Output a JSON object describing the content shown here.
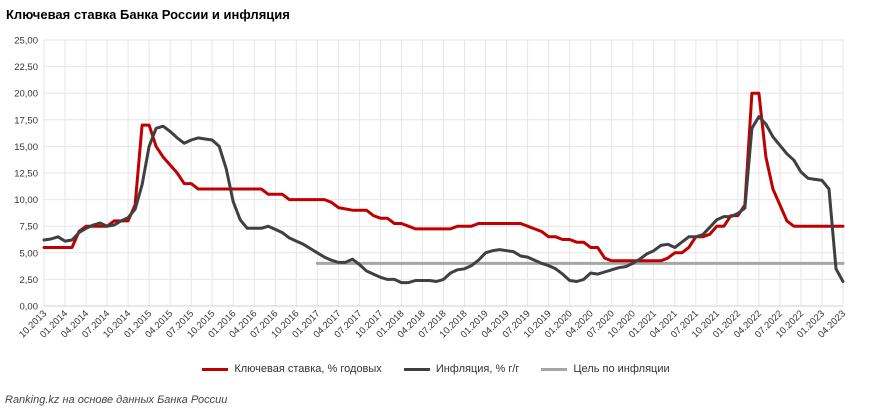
{
  "chart_data": {
    "type": "line",
    "title": "Ключевая ставка Банка России и инфляция",
    "source": "Ranking.kz на основе данных Банка России",
    "ylim": [
      0,
      25
    ],
    "yticks": [
      "0,00",
      "2,50",
      "5,00",
      "7,50",
      "10,00",
      "12,50",
      "15,00",
      "17,50",
      "20,00",
      "22,50",
      "25,00"
    ],
    "x_range": [
      "10.2013",
      "04.2023"
    ],
    "xticks": [
      "10.2013",
      "01.2014",
      "04.2014",
      "07.2014",
      "10.2014",
      "01.2015",
      "04.2015",
      "07.2015",
      "10.2015",
      "01.2016",
      "04.2016",
      "07.2016",
      "10.2016",
      "01.2017",
      "04.2017",
      "07.2017",
      "10.2017",
      "01.2018",
      "04.2018",
      "07.2018",
      "10.2018",
      "01.2019",
      "04.2019",
      "07.2019",
      "10.2019",
      "01.2020",
      "04.2020",
      "07.2020",
      "10.2020",
      "01.2021",
      "04.2021",
      "07.2021",
      "10.2021",
      "01.2022",
      "04.2022",
      "07.2022",
      "10.2022",
      "01.2023",
      "04.2023"
    ],
    "grid": true,
    "legend_position": "bottom",
    "series": [
      {
        "name": "Ключевая ставка, % годовых",
        "color": "#c00000",
        "points": [
          [
            "10.2013",
            5.5
          ],
          [
            "02.2014",
            5.5
          ],
          [
            "03.2014",
            7.0
          ],
          [
            "04.2014",
            7.5
          ],
          [
            "07.2014",
            7.5
          ],
          [
            "08.2014",
            8.0
          ],
          [
            "10.2014",
            8.0
          ],
          [
            "11.2014",
            9.5
          ],
          [
            "12.2014",
            17.0
          ],
          [
            "01.2015",
            17.0
          ],
          [
            "02.2015",
            15.0
          ],
          [
            "03.2015",
            14.0
          ],
          [
            "05.2015",
            12.5
          ],
          [
            "06.2015",
            11.5
          ],
          [
            "07.2015",
            11.5
          ],
          [
            "08.2015",
            11.0
          ],
          [
            "05.2016",
            11.0
          ],
          [
            "06.2016",
            10.5
          ],
          [
            "08.2016",
            10.5
          ],
          [
            "09.2016",
            10.0
          ],
          [
            "02.2017",
            10.0
          ],
          [
            "03.2017",
            9.75
          ],
          [
            "04.2017",
            9.25
          ],
          [
            "06.2017",
            9.0
          ],
          [
            "08.2017",
            9.0
          ],
          [
            "09.2017",
            8.5
          ],
          [
            "10.2017",
            8.25
          ],
          [
            "11.2017",
            8.25
          ],
          [
            "12.2017",
            7.75
          ],
          [
            "01.2018",
            7.75
          ],
          [
            "02.2018",
            7.5
          ],
          [
            "03.2018",
            7.25
          ],
          [
            "08.2018",
            7.25
          ],
          [
            "09.2018",
            7.5
          ],
          [
            "11.2018",
            7.5
          ],
          [
            "12.2018",
            7.75
          ],
          [
            "06.2019",
            7.75
          ],
          [
            "07.2019",
            7.5
          ],
          [
            "08.2019",
            7.25
          ],
          [
            "09.2019",
            7.0
          ],
          [
            "10.2019",
            6.5
          ],
          [
            "11.2019",
            6.5
          ],
          [
            "12.2019",
            6.25
          ],
          [
            "01.2020",
            6.25
          ],
          [
            "02.2020",
            6.0
          ],
          [
            "03.2020",
            6.0
          ],
          [
            "04.2020",
            5.5
          ],
          [
            "05.2020",
            5.5
          ],
          [
            "06.2020",
            4.5
          ],
          [
            "07.2020",
            4.25
          ],
          [
            "02.2021",
            4.25
          ],
          [
            "03.2021",
            4.5
          ],
          [
            "04.2021",
            5.0
          ],
          [
            "05.2021",
            5.0
          ],
          [
            "06.2021",
            5.5
          ],
          [
            "07.2021",
            6.5
          ],
          [
            "08.2021",
            6.5
          ],
          [
            "09.2021",
            6.75
          ],
          [
            "10.2021",
            7.5
          ],
          [
            "11.2021",
            7.5
          ],
          [
            "12.2021",
            8.5
          ],
          [
            "01.2022",
            8.5
          ],
          [
            "02.2022",
            9.5
          ],
          [
            "03.2022",
            20.0
          ],
          [
            "04.2022",
            20.0
          ],
          [
            "05.2022",
            14.0
          ],
          [
            "06.2022",
            11.0
          ],
          [
            "07.2022",
            9.5
          ],
          [
            "08.2022",
            8.0
          ],
          [
            "09.2022",
            7.5
          ],
          [
            "04.2023",
            7.5
          ]
        ]
      },
      {
        "name": "Инфляция, % г/г",
        "color": "#404040",
        "points": [
          [
            "10.2013",
            6.2
          ],
          [
            "11.2013",
            6.3
          ],
          [
            "12.2013",
            6.5
          ],
          [
            "01.2014",
            6.1
          ],
          [
            "02.2014",
            6.2
          ],
          [
            "03.2014",
            6.9
          ],
          [
            "04.2014",
            7.3
          ],
          [
            "05.2014",
            7.6
          ],
          [
            "06.2014",
            7.8
          ],
          [
            "07.2014",
            7.5
          ],
          [
            "08.2014",
            7.6
          ],
          [
            "09.2014",
            8.0
          ],
          [
            "10.2014",
            8.3
          ],
          [
            "11.2014",
            9.1
          ],
          [
            "12.2014",
            11.4
          ],
          [
            "01.2015",
            15.0
          ],
          [
            "02.2015",
            16.7
          ],
          [
            "03.2015",
            16.9
          ],
          [
            "04.2015",
            16.4
          ],
          [
            "05.2015",
            15.8
          ],
          [
            "06.2015",
            15.3
          ],
          [
            "07.2015",
            15.6
          ],
          [
            "08.2015",
            15.8
          ],
          [
            "09.2015",
            15.7
          ],
          [
            "10.2015",
            15.6
          ],
          [
            "11.2015",
            15.0
          ],
          [
            "12.2015",
            12.9
          ],
          [
            "01.2016",
            9.8
          ],
          [
            "02.2016",
            8.1
          ],
          [
            "03.2016",
            7.3
          ],
          [
            "04.2016",
            7.3
          ],
          [
            "05.2016",
            7.3
          ],
          [
            "06.2016",
            7.5
          ],
          [
            "07.2016",
            7.2
          ],
          [
            "08.2016",
            6.9
          ],
          [
            "09.2016",
            6.4
          ],
          [
            "10.2016",
            6.1
          ],
          [
            "11.2016",
            5.8
          ],
          [
            "12.2016",
            5.4
          ],
          [
            "01.2017",
            5.0
          ],
          [
            "02.2017",
            4.6
          ],
          [
            "03.2017",
            4.3
          ],
          [
            "04.2017",
            4.1
          ],
          [
            "05.2017",
            4.1
          ],
          [
            "06.2017",
            4.4
          ],
          [
            "07.2017",
            3.9
          ],
          [
            "08.2017",
            3.3
          ],
          [
            "09.2017",
            3.0
          ],
          [
            "10.2017",
            2.7
          ],
          [
            "11.2017",
            2.5
          ],
          [
            "12.2017",
            2.5
          ],
          [
            "01.2018",
            2.2
          ],
          [
            "02.2018",
            2.2
          ],
          [
            "03.2018",
            2.4
          ],
          [
            "04.2018",
            2.4
          ],
          [
            "05.2018",
            2.4
          ],
          [
            "06.2018",
            2.3
          ],
          [
            "07.2018",
            2.5
          ],
          [
            "08.2018",
            3.1
          ],
          [
            "09.2018",
            3.4
          ],
          [
            "10.2018",
            3.5
          ],
          [
            "11.2018",
            3.8
          ],
          [
            "12.2018",
            4.3
          ],
          [
            "01.2019",
            5.0
          ],
          [
            "02.2019",
            5.2
          ],
          [
            "03.2019",
            5.3
          ],
          [
            "04.2019",
            5.2
          ],
          [
            "05.2019",
            5.1
          ],
          [
            "06.2019",
            4.7
          ],
          [
            "07.2019",
            4.6
          ],
          [
            "08.2019",
            4.3
          ],
          [
            "09.2019",
            4.0
          ],
          [
            "10.2019",
            3.8
          ],
          [
            "11.2019",
            3.5
          ],
          [
            "12.2019",
            3.0
          ],
          [
            "01.2020",
            2.4
          ],
          [
            "02.2020",
            2.3
          ],
          [
            "03.2020",
            2.5
          ],
          [
            "04.2020",
            3.1
          ],
          [
            "05.2020",
            3.0
          ],
          [
            "06.2020",
            3.2
          ],
          [
            "07.2020",
            3.4
          ],
          [
            "08.2020",
            3.6
          ],
          [
            "09.2020",
            3.7
          ],
          [
            "10.2020",
            4.0
          ],
          [
            "11.2020",
            4.4
          ],
          [
            "12.2020",
            4.9
          ],
          [
            "01.2021",
            5.2
          ],
          [
            "02.2021",
            5.7
          ],
          [
            "03.2021",
            5.8
          ],
          [
            "04.2021",
            5.5
          ],
          [
            "05.2021",
            6.0
          ],
          [
            "06.2021",
            6.5
          ],
          [
            "07.2021",
            6.5
          ],
          [
            "08.2021",
            6.7
          ],
          [
            "09.2021",
            7.4
          ],
          [
            "10.2021",
            8.1
          ],
          [
            "11.2021",
            8.4
          ],
          [
            "12.2021",
            8.4
          ],
          [
            "01.2022",
            8.7
          ],
          [
            "02.2022",
            9.2
          ],
          [
            "03.2022",
            16.7
          ],
          [
            "04.2022",
            17.8
          ],
          [
            "05.2022",
            17.1
          ],
          [
            "06.2022",
            15.9
          ],
          [
            "07.2022",
            15.1
          ],
          [
            "08.2022",
            14.3
          ],
          [
            "09.2022",
            13.7
          ],
          [
            "10.2022",
            12.6
          ],
          [
            "11.2022",
            12.0
          ],
          [
            "12.2022",
            11.9
          ],
          [
            "01.2023",
            11.8
          ],
          [
            "02.2023",
            11.0
          ],
          [
            "03.2023",
            3.5
          ],
          [
            "04.2023",
            2.3
          ]
        ]
      },
      {
        "name": "Цель по инфляции",
        "color": "#a6a6a6",
        "points": [
          [
            "01.2017",
            4.0
          ],
          [
            "04.2023",
            4.0
          ]
        ]
      }
    ]
  }
}
